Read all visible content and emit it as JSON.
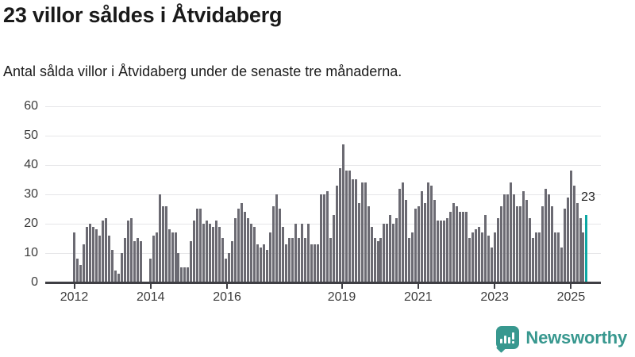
{
  "header": {
    "title": "23 villor såldes i Åtvidaberg",
    "subtitle": "Antal sålda villor i Åtvidaberg under de senaste tre månaderna."
  },
  "colors": {
    "bar": "#6b6a72",
    "highlight": "#0ca7a3",
    "axis": "#3f3f44",
    "axis_label": "#3c3c3c",
    "grid": "#e6e6e8",
    "title_text": "#1a1a1a",
    "logo": "#38988f"
  },
  "chart_data": {
    "type": "bar",
    "title": "23 villor såldes i Åtvidaberg",
    "subtitle": "Antal sålda villor i Åtvidaberg under de senaste tre månaderna.",
    "x_start": "2012-01",
    "x_end": "2025-07",
    "x_unit": "månad",
    "y_unit": "antal sålda villor (rullande tre månader)",
    "ylim": [
      0,
      60
    ],
    "y_ticks": [
      0,
      10,
      20,
      30,
      40,
      50,
      60
    ],
    "grid": "horizontal",
    "x_tick_labels": [
      "2012",
      "2014",
      "2016",
      "2019",
      "2021",
      "2023",
      "2025"
    ],
    "x_tick_indices": [
      0,
      24,
      48,
      84,
      108,
      132,
      156
    ],
    "values": [
      17,
      8,
      6,
      13,
      19,
      20,
      19,
      18,
      16,
      21,
      22,
      16,
      11,
      4,
      3,
      10,
      15,
      21,
      22,
      14,
      15,
      14,
      0,
      0,
      8,
      16,
      17,
      30,
      26,
      26,
      18,
      17,
      17,
      10,
      5,
      5,
      5,
      14,
      21,
      25,
      25,
      20,
      21,
      20,
      19,
      21,
      19,
      15,
      8,
      10,
      14,
      22,
      25,
      27,
      24,
      22,
      20,
      19,
      13,
      12,
      13,
      11,
      17,
      26,
      30,
      25,
      19,
      13,
      15,
      15,
      20,
      15,
      20,
      15,
      20,
      13,
      13,
      13,
      30,
      30,
      31,
      15,
      23,
      33,
      39,
      47,
      38,
      38,
      35,
      35,
      27,
      34,
      34,
      26,
      19,
      15,
      14,
      15,
      20,
      20,
      23,
      20,
      22,
      32,
      34,
      28,
      15,
      17,
      25,
      26,
      31,
      27,
      34,
      33,
      28,
      21,
      21,
      21,
      22,
      24,
      27,
      26,
      24,
      24,
      24,
      15,
      17,
      18,
      19,
      17,
      23,
      16,
      12,
      17,
      22,
      26,
      30,
      30,
      34,
      30,
      26,
      26,
      31,
      28,
      22,
      15,
      17,
      17,
      26,
      32,
      30,
      26,
      17,
      17,
      12,
      25,
      29,
      38,
      33,
      27,
      22,
      17,
      23
    ],
    "highlight_index": 162,
    "highlight_value": 23,
    "highlight_value_label": "23",
    "legend": "none"
  },
  "footer": {
    "brand": "Newsworthy",
    "logo_icon": "bar-chart-speech-bubble"
  }
}
